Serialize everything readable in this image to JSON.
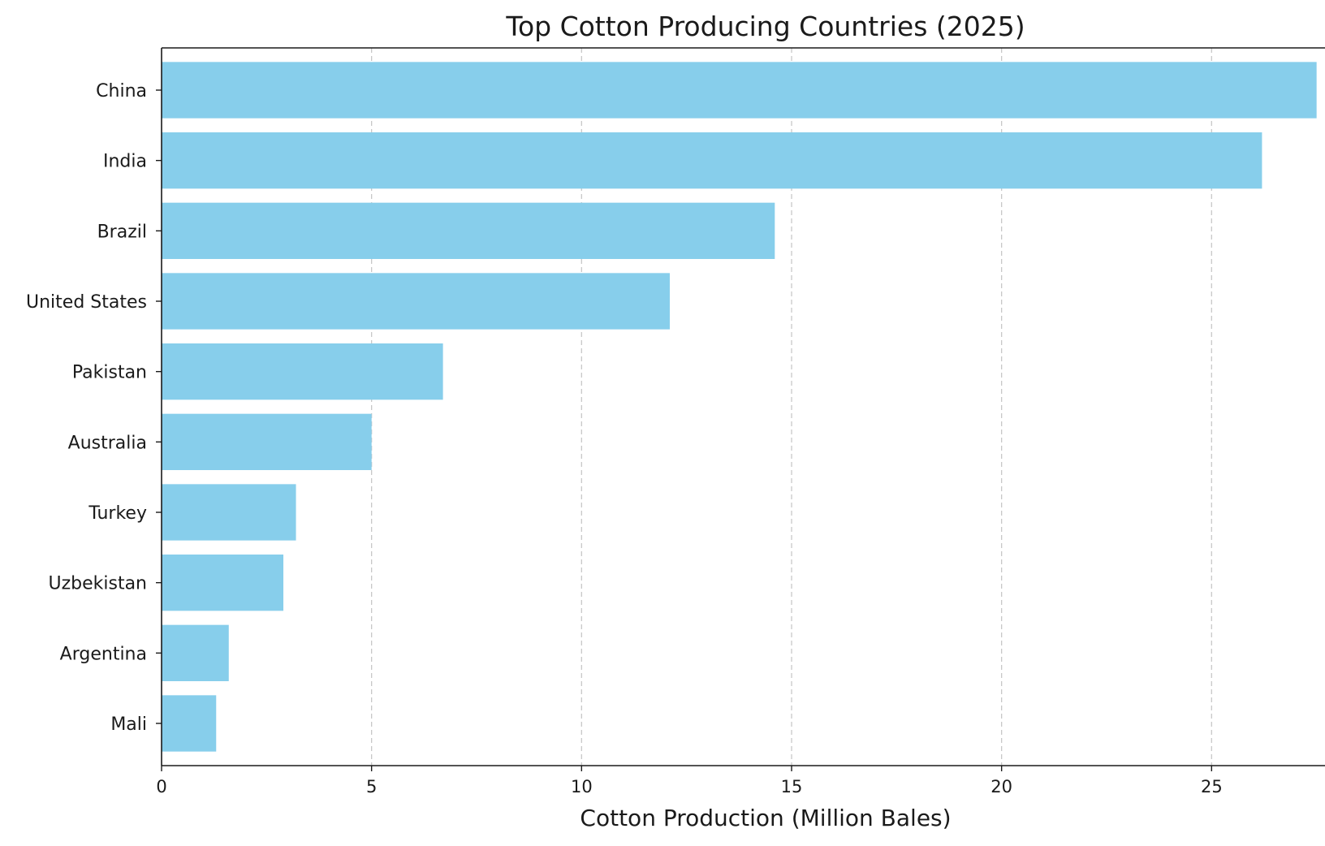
{
  "chart_data": {
    "type": "bar",
    "orientation": "horizontal",
    "title": "Top Cotton Producing Countries (2025)",
    "xlabel": "Cotton Production (Million Bales)",
    "ylabel": "",
    "categories": [
      "China",
      "India",
      "Brazil",
      "United States",
      "Pakistan",
      "Australia",
      "Turkey",
      "Uzbekistan",
      "Argentina",
      "Mali"
    ],
    "values": [
      27.5,
      26.2,
      14.6,
      12.1,
      6.7,
      5.0,
      3.2,
      2.9,
      1.6,
      1.3
    ],
    "xlim": [
      0,
      27.7
    ],
    "xticks": [
      0,
      5,
      10,
      15,
      20,
      25
    ],
    "grid": "x-axis dashed",
    "legend": "none",
    "bar_color": "#87CEEB",
    "grid_color": "#c8c8c8",
    "axis_color": "#1a1a1a"
  }
}
